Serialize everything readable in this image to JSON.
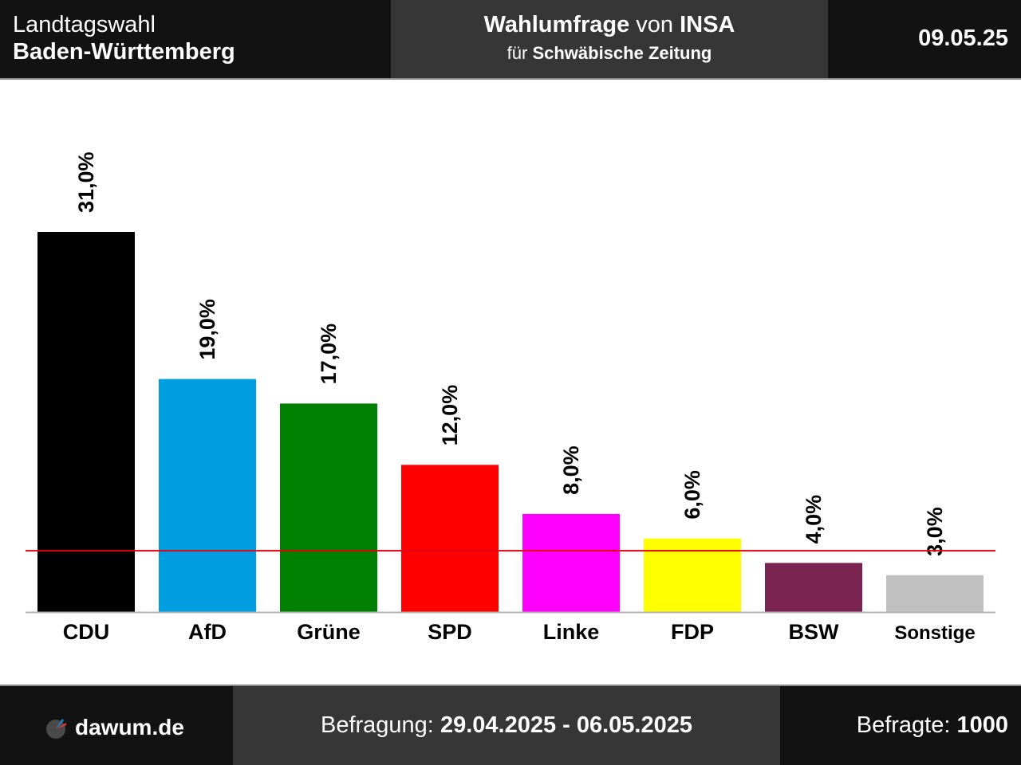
{
  "header": {
    "election_type": "Landtagswahl",
    "region": "Baden-Württemberg",
    "poll_title_bold": "Wahlumfrage",
    "poll_title_von": "von",
    "pollster": "INSA",
    "client_prefix": "für",
    "client": "Schwäbische Zeitung",
    "date": "09.05.25"
  },
  "footer": {
    "logo_icon": "dawum-logo-icon",
    "site": "dawum.de",
    "survey_label": "Befragung:",
    "survey_period": "29.04.2025 - 06.05.2025",
    "respondents_label": "Befragte:",
    "respondents": "1000"
  },
  "chart_data": {
    "type": "bar",
    "categories": [
      "CDU",
      "AfD",
      "Grüne",
      "SPD",
      "Linke",
      "FDP",
      "BSW",
      "Sonstige"
    ],
    "values": [
      31.0,
      19.0,
      17.0,
      12.0,
      8.0,
      6.0,
      4.0,
      3.0
    ],
    "value_labels": [
      "31,0%",
      "19,0%",
      "17,0%",
      "12,0%",
      "8,0%",
      "6,0%",
      "4,0%",
      "3,0%"
    ],
    "colors": [
      "#000000",
      "#009ee0",
      "#008000",
      "#ff0000",
      "#ff00ff",
      "#ffff00",
      "#7a2350",
      "#c0c0c0"
    ],
    "threshold": 5.0,
    "threshold_color": "#e3000f",
    "ylim": [
      0,
      31
    ],
    "grid": false,
    "title": "",
    "xlabel": "",
    "ylabel": ""
  }
}
